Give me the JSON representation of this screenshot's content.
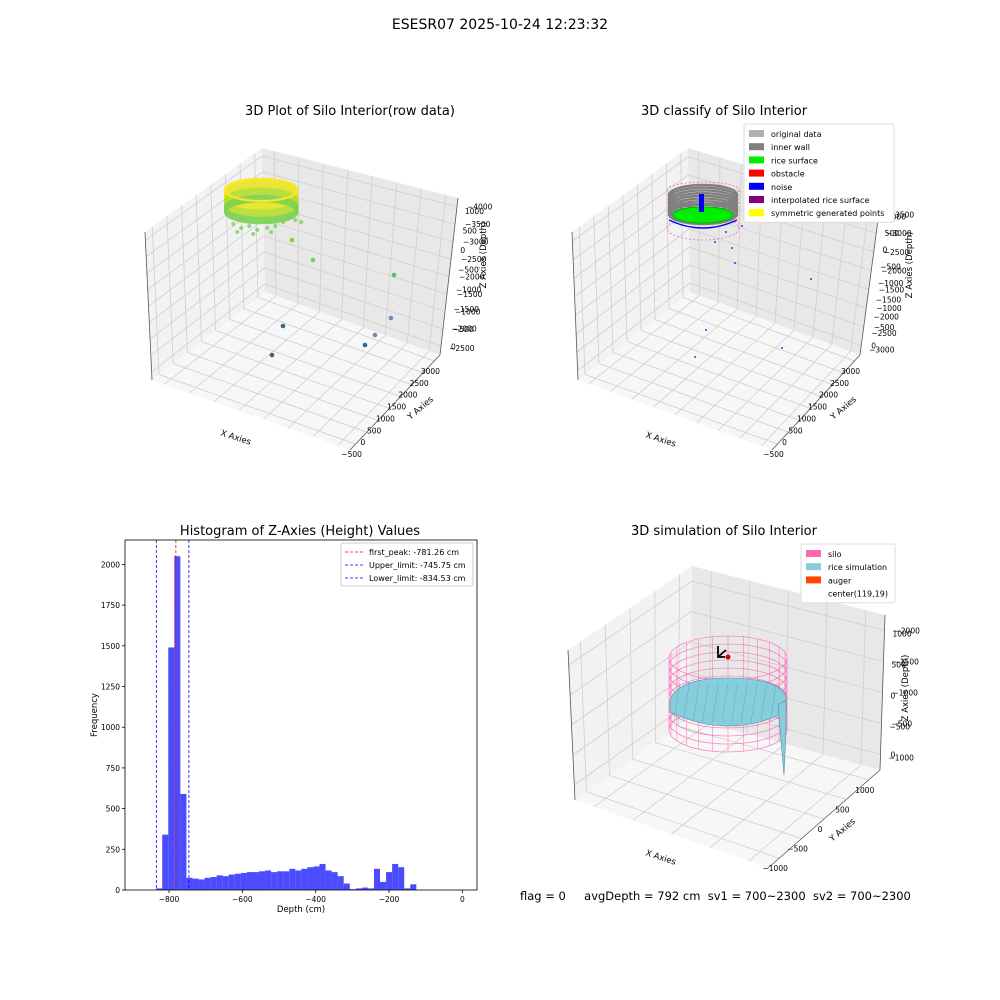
{
  "figure": {
    "suptitle": "ESESR07 2025-10-24 12:23:32",
    "status": {
      "flag": "flag = 0",
      "avg_depth": "avgDepth = 792 cm",
      "sv1": "sv1 = 700~2300",
      "sv2": "sv2 = 700~2300"
    }
  },
  "chart_data": [
    {
      "type": "scatter",
      "projection": "3d",
      "title": "3D Plot of Silo Interior(row data)",
      "xlabel": "X Axies",
      "ylabel": "Y Axies",
      "zlabel": "Z Axies (Depth)",
      "xticks": [
        -500,
        0,
        500,
        1000,
        1500,
        2000,
        2500,
        3000
      ],
      "yticks": [
        -2500,
        -2000,
        -1500,
        -1000,
        -500,
        0,
        500,
        1000
      ],
      "zticks": [
        0,
        -500,
        -1000,
        -1500,
        -2000,
        -2500,
        -3000,
        -3500,
        -4000
      ],
      "xticks_text": [
        "−500",
        "0",
        "500",
        "1000",
        "1500",
        "2000",
        "2500",
        "3000"
      ],
      "yticks_text": [
        "−2500",
        "−2000",
        "−1500",
        "−1000",
        "−500",
        "0",
        "500",
        "1000"
      ],
      "zticks_text": [
        "0",
        "−500",
        "−1000",
        "−1500",
        "−2000",
        "−2500",
        "−3000",
        "−3500",
        "−4000"
      ],
      "xlim": [
        -600,
        3100
      ],
      "ylim": [
        -2700,
        1200
      ],
      "zlim": [
        -4200,
        100
      ],
      "colormap": "viridis",
      "cylinder": {
        "center": [
          119,
          19
        ],
        "radius": 900,
        "z_top": 0,
        "z_bottom": -500
      },
      "outliers": [
        {
          "x": 300,
          "y": 200,
          "z": -900
        },
        {
          "x": 500,
          "y": 300,
          "z": -1500
        },
        {
          "x": 2700,
          "y": 600,
          "z": -2900
        },
        {
          "x": 2800,
          "y": -200,
          "z": -3700
        },
        {
          "x": 2600,
          "y": -900,
          "z": -3500
        },
        {
          "x": 2500,
          "y": -1200,
          "z": -3100
        },
        {
          "x": 400,
          "y": -1200,
          "z": -3700
        },
        {
          "x": 600,
          "y": -1300,
          "z": -3900
        }
      ]
    },
    {
      "type": "scatter",
      "projection": "3d",
      "title": "3D classify of Silo Interior",
      "xlabel": "X Axies",
      "ylabel": "Y Axies",
      "zlabel": "Z Axies (Depth)",
      "xticks_text": [
        "−500",
        "0",
        "500",
        "1000",
        "1500",
        "2000",
        "2500",
        "3000"
      ],
      "yticks_text": [
        "−3000",
        "−2500",
        "−2000",
        "−1500",
        "−1000",
        "−500",
        "0",
        "500",
        "1000"
      ],
      "zticks_text": [
        "0",
        "−500",
        "−1000",
        "−1500",
        "−2000",
        "−2500",
        "−3000",
        "−3500"
      ],
      "legend": [
        {
          "label": "original data",
          "color": "#b0b0b0"
        },
        {
          "label": "inner wall",
          "color": "#808080"
        },
        {
          "label": "rice surface",
          "color": "#00ee00"
        },
        {
          "label": "obstacle",
          "color": "#ff0000"
        },
        {
          "label": "noise",
          "color": "#0000ff"
        },
        {
          "label": "interpolated rice surface",
          "color": "#800080"
        },
        {
          "label": "symmetric generated points",
          "color": "#ffff00"
        }
      ],
      "legend_loc": "upper right"
    },
    {
      "type": "bar",
      "title": "Histogram of Z-Axies (Height) Values",
      "xlabel": "Depth (cm)",
      "ylabel": "Frequency",
      "xlim": [
        -920,
        40
      ],
      "ylim": [
        0,
        2150
      ],
      "xticks": [
        -800,
        -600,
        -400,
        -200,
        0
      ],
      "xticks_text": [
        "−800",
        "−600",
        "−400",
        "−200",
        "0"
      ],
      "yticks": [
        0,
        250,
        500,
        750,
        1000,
        1250,
        1500,
        1750,
        2000
      ],
      "yticks_text": [
        "0",
        "250",
        "500",
        "750",
        "1000",
        "1250",
        "1500",
        "1750",
        "2000"
      ],
      "bar_color": "#0000ff",
      "bins": {
        "start": -835,
        "width": 16.5,
        "values": [
          10,
          340,
          1490,
          2050,
          590,
          75,
          70,
          65,
          75,
          80,
          90,
          85,
          95,
          100,
          105,
          110,
          110,
          115,
          120,
          110,
          115,
          115,
          130,
          120,
          130,
          140,
          145,
          160,
          120,
          110,
          85,
          40,
          5,
          10,
          15,
          10,
          130,
          50,
          110,
          160,
          140,
          10,
          35
        ]
      },
      "lines": [
        {
          "label": "first_peak: -781.26 cm",
          "value": -781.26,
          "color": "#ff0000"
        },
        {
          "label": "Upper_limit: -745.75 cm",
          "value": -745.75,
          "color": "#0000ff"
        },
        {
          "label": "Lower_limit: -834.53 cm",
          "value": -834.53,
          "color": "#0000ff"
        }
      ],
      "legend_loc": "upper right"
    },
    {
      "type": "surface",
      "projection": "3d",
      "title": "3D simulation of Silo Interior",
      "xlabel": "X Axies",
      "ylabel": "Y Axies",
      "zlabel": "Z Axies (Depth)",
      "xticks_text": [
        "−1000",
        "−500",
        "0",
        "500",
        "1000"
      ],
      "yticks_text": [
        "−1000",
        "−500",
        "0",
        "500",
        "1000"
      ],
      "zticks_text": [
        "0",
        "−500",
        "−1000",
        "−1500",
        "−2000"
      ],
      "legend": [
        {
          "label": "silo",
          "color": "#ff69b4"
        },
        {
          "label": "rice simulation",
          "color": "#87cedc"
        },
        {
          "label": "auger",
          "color": "#ff4500"
        },
        {
          "label": "center(119,19)",
          "color": ""
        }
      ],
      "legend_loc": "upper right"
    }
  ]
}
